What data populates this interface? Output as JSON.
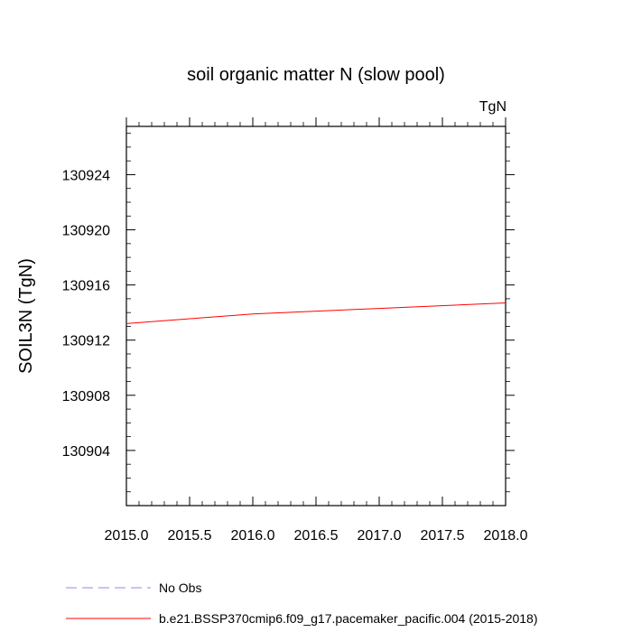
{
  "chart_data": {
    "type": "line",
    "title": "soil organic matter N (slow pool)",
    "units_label": "TgN",
    "ylabel": "SOIL3N  (TgN)",
    "xlabel": "",
    "xlim": [
      2015.0,
      2018.0
    ],
    "ylim": [
      130900.0,
      130927.5
    ],
    "x_ticks": [
      2015.0,
      2015.5,
      2016.0,
      2016.5,
      2017.0,
      2017.5,
      2018.0
    ],
    "x_tick_labels": [
      "2015.0",
      "2015.5",
      "2016.0",
      "2016.5",
      "2017.0",
      "2017.5",
      "2018.0"
    ],
    "y_ticks": [
      130904,
      130908,
      130912,
      130916,
      130920,
      130924
    ],
    "y_tick_labels": [
      "130904",
      "130908",
      "130912",
      "130916",
      "130920",
      "130924"
    ],
    "grid": false,
    "legend_position": "bottom-left",
    "series": [
      {
        "name": "No Obs",
        "color": "#8888ff",
        "dash": "dashed",
        "x": [],
        "y": []
      },
      {
        "name": "b.e21.BSSP370cmip6.f09_g17.pacemaker_pacific.004 (2015-2018)",
        "color": "#ff0000",
        "dash": "solid",
        "x": [
          2015.0,
          2016.0,
          2017.0,
          2018.0
        ],
        "y": [
          130913.2,
          130913.9,
          130914.3,
          130914.7
        ]
      }
    ]
  }
}
